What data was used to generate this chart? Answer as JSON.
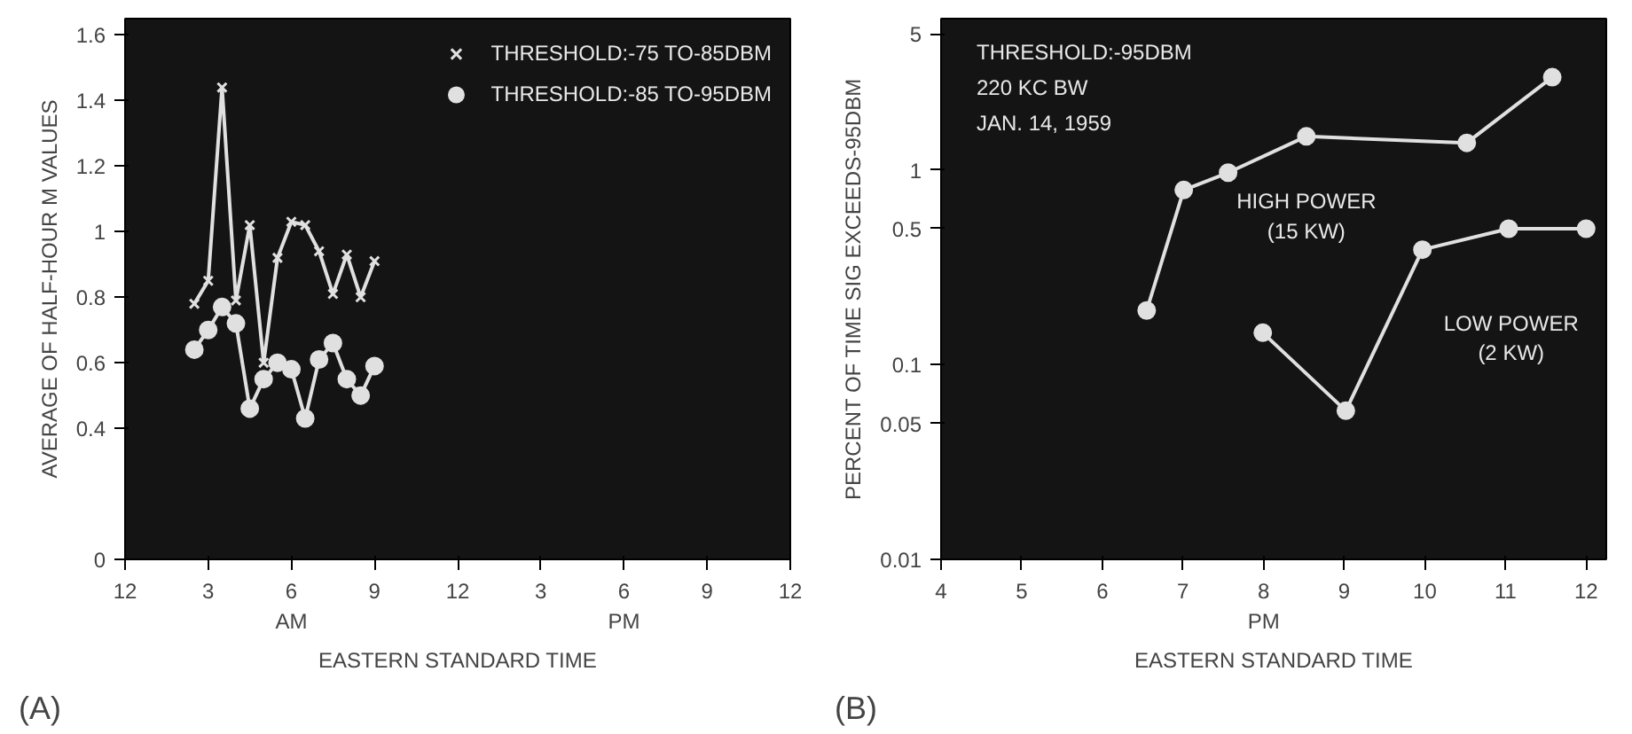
{
  "chart_data": [
    {
      "type": "line",
      "xlabel": "EASTERN STANDARD TIME",
      "ylabel": "AVERAGE OF HALF-HOUR M VALUES",
      "annotations": [
        "(A)"
      ],
      "categories": [
        "12",
        null,
        null,
        null,
        null,
        null,
        "3",
        null,
        null,
        null,
        null,
        null,
        "6\nAM",
        null,
        null,
        null,
        null,
        null,
        "9",
        null,
        null,
        null,
        null,
        null,
        "12",
        null,
        null,
        null,
        null,
        null,
        "3",
        null,
        null,
        null,
        null,
        null,
        "6\nPM",
        null,
        null,
        null,
        null,
        null,
        "9",
        null,
        null,
        null,
        null,
        null,
        "12"
      ],
      "series": [
        {
          "name": "THRESHOLD:-75 TO-85DBM",
          "color": "#e0e0e0",
          "marker": "cross",
          "values": [
            null,
            null,
            null,
            null,
            null,
            0.78,
            0.85,
            1.44,
            0.79,
            1.02,
            0.6,
            0.92,
            1.03,
            1.02,
            0.94,
            0.81,
            0.93,
            0.8,
            0.91,
            null,
            null,
            null,
            null,
            null,
            null,
            null,
            null,
            null,
            null,
            null,
            null,
            null,
            null,
            null,
            null,
            null,
            null,
            null,
            null,
            null,
            null,
            null,
            null,
            null,
            null,
            null,
            null,
            null,
            null
          ]
        },
        {
          "name": "THRESHOLD:-85 TO-95DBM",
          "color": "#e0e0e0",
          "marker": "circle",
          "values": [
            null,
            null,
            null,
            null,
            null,
            0.64,
            0.7,
            0.77,
            0.72,
            0.46,
            0.55,
            0.6,
            0.58,
            0.43,
            0.61,
            0.66,
            0.55,
            0.5,
            0.59,
            null,
            null,
            null,
            null,
            null,
            null,
            null,
            null,
            null,
            null,
            null,
            null,
            null,
            null,
            null,
            null,
            null,
            null,
            null,
            null,
            null,
            null,
            null,
            null,
            null,
            null,
            null,
            null,
            null,
            null
          ]
        }
      ],
      "ylim": [
        0,
        1.65
      ],
      "yticks": [
        0,
        0.4,
        0.6,
        0.8,
        1,
        1.2,
        1.4,
        1.6
      ],
      "grid": false,
      "legend": "top right"
    },
    {
      "type": "line",
      "xlabel": "EASTERN STANDARD TIME",
      "ylabel": "PERCENT OF TIME SIG EXCEEDS-95DBM",
      "annotations": [
        "(B)",
        "THRESHOLD:-95DBM",
        "220 KC BW",
        "JAN. 14, 1959"
      ],
      "series": [
        {
          "name": "HIGH POWER\n(15 KW)",
          "color": "#e0e0e0",
          "marker": "circle",
          "x": [
            6.55,
            7.01,
            7.56,
            8.53,
            10.52,
            11.58
          ],
          "values": [
            0.19,
            0.79,
            0.97,
            1.49,
            1.38,
            3.0
          ]
        },
        {
          "name": "LOW POWER\n(2 KW)",
          "color": "#e0e0e0",
          "marker": "circle",
          "x": [
            7.99,
            9.02,
            9.97,
            11.04,
            12.0
          ],
          "values": [
            0.146,
            0.058,
            0.39,
            0.5,
            0.5
          ]
        }
      ],
      "xlim": [
        4,
        12.25
      ],
      "xticks": [
        4,
        5,
        6,
        7,
        {
          "value": 8,
          "label": "8\nPM"
        },
        9,
        10,
        11,
        12
      ],
      "ylim": [
        0.01,
        6
      ],
      "yticks": [
        0.01,
        0.05,
        0.1,
        0.5,
        1,
        5
      ],
      "log": true,
      "grid": false,
      "legend": false
    }
  ]
}
